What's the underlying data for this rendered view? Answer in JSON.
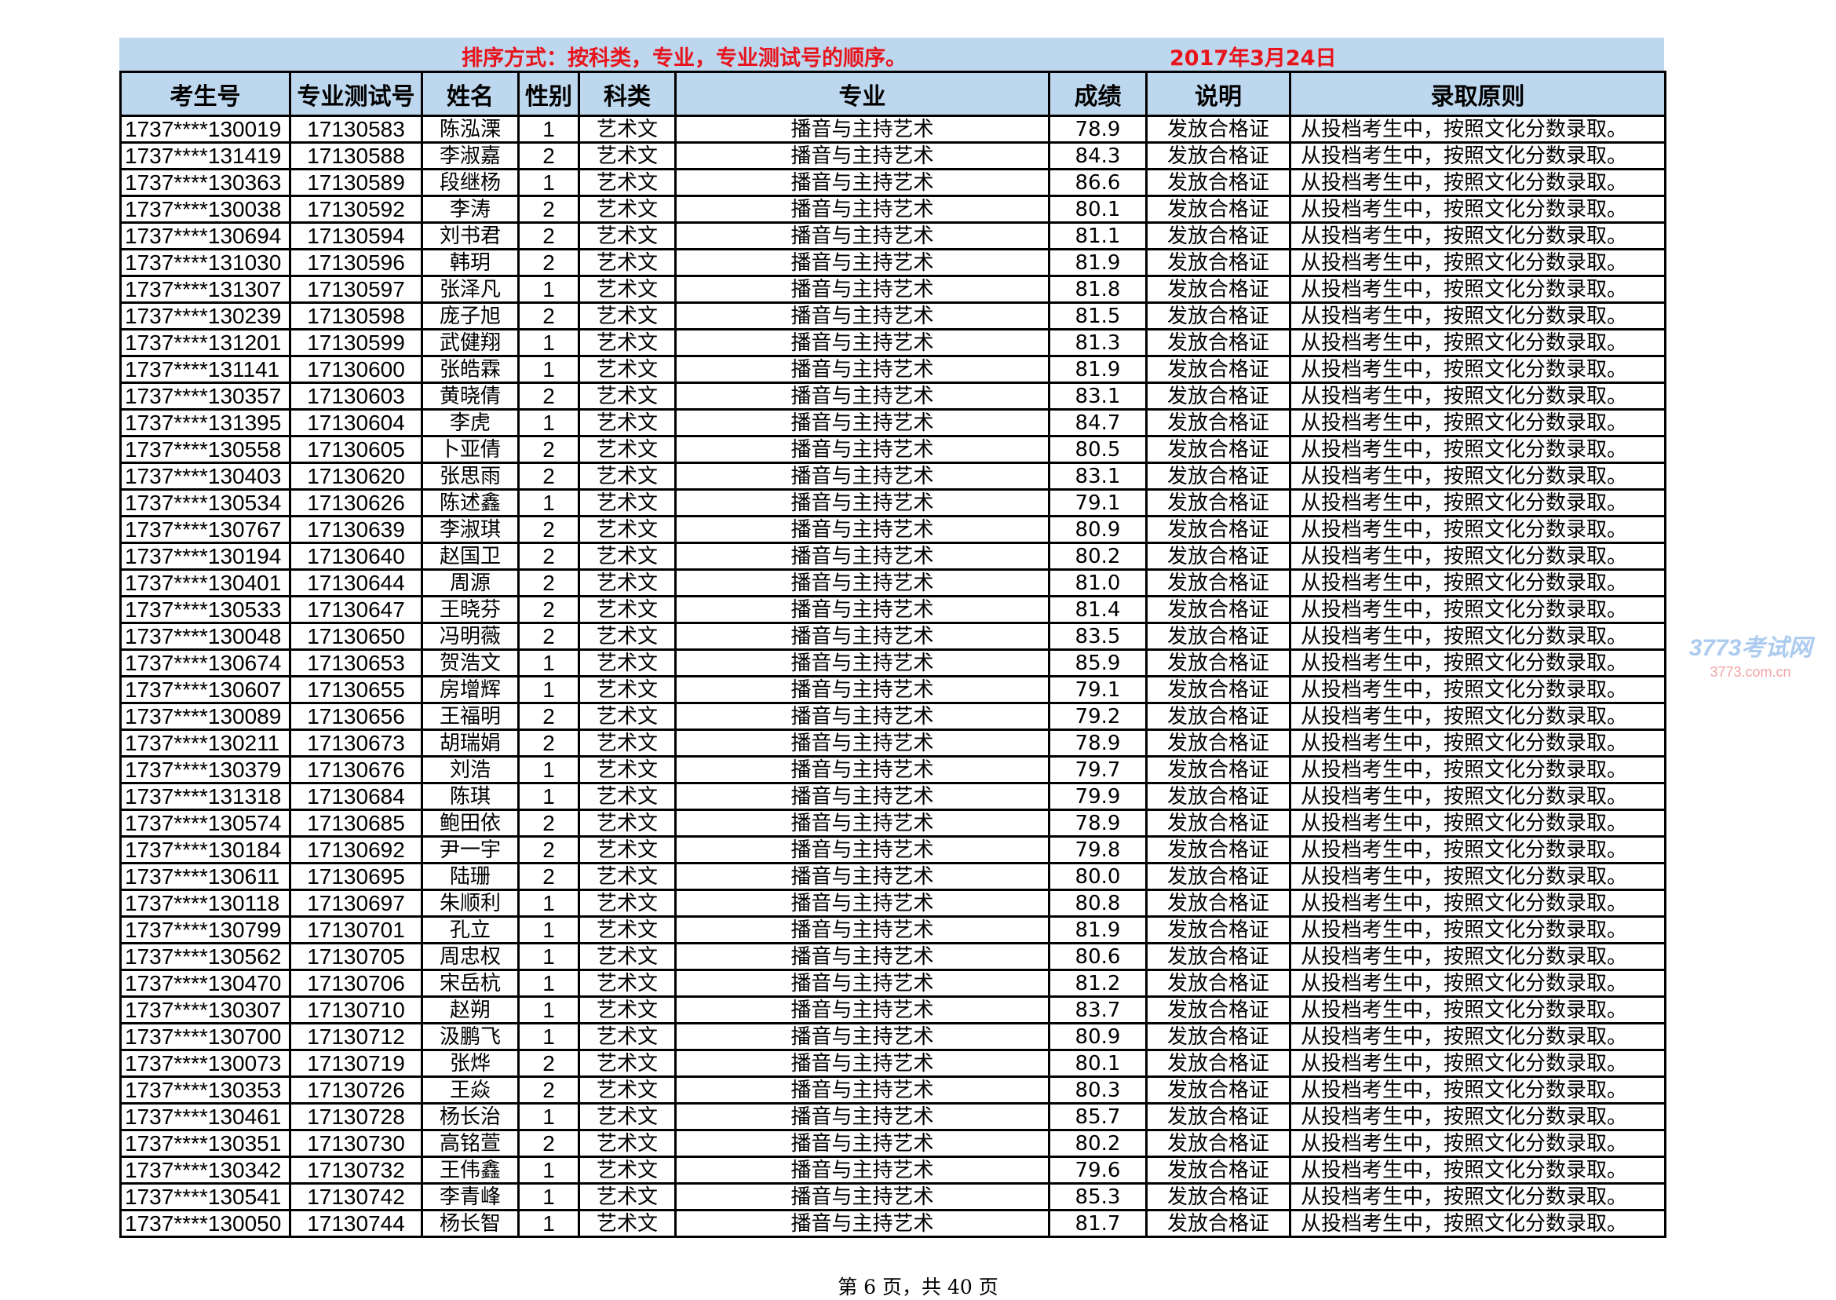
{
  "header": {
    "sort_note": "排序方式：按科类，专业，专业测试号的顺序。",
    "date": "2017年3月24日",
    "band_color": "#bdd7ee",
    "note_color": "#e8141c"
  },
  "table": {
    "columns": [
      "考生号",
      "专业测试号",
      "姓名",
      "性别",
      "科类",
      "专业",
      "成绩",
      "说明",
      "录取原则"
    ],
    "rows": [
      [
        "1737****130019",
        "17130583",
        "陈泓溧",
        "1",
        "艺术文",
        "播音与主持艺术",
        "78.9",
        "发放合格证",
        "从投档考生中，按照文化分数录取。"
      ],
      [
        "1737****131419",
        "17130588",
        "李淑嘉",
        "2",
        "艺术文",
        "播音与主持艺术",
        "84.3",
        "发放合格证",
        "从投档考生中，按照文化分数录取。"
      ],
      [
        "1737****130363",
        "17130589",
        "段继杨",
        "1",
        "艺术文",
        "播音与主持艺术",
        "86.6",
        "发放合格证",
        "从投档考生中，按照文化分数录取。"
      ],
      [
        "1737****130038",
        "17130592",
        "李涛",
        "2",
        "艺术文",
        "播音与主持艺术",
        "80.1",
        "发放合格证",
        "从投档考生中，按照文化分数录取。"
      ],
      [
        "1737****130694",
        "17130594",
        "刘书君",
        "2",
        "艺术文",
        "播音与主持艺术",
        "81.1",
        "发放合格证",
        "从投档考生中，按照文化分数录取。"
      ],
      [
        "1737****131030",
        "17130596",
        "韩玥",
        "2",
        "艺术文",
        "播音与主持艺术",
        "81.9",
        "发放合格证",
        "从投档考生中，按照文化分数录取。"
      ],
      [
        "1737****131307",
        "17130597",
        "张泽凡",
        "1",
        "艺术文",
        "播音与主持艺术",
        "81.8",
        "发放合格证",
        "从投档考生中，按照文化分数录取。"
      ],
      [
        "1737****130239",
        "17130598",
        "庞子旭",
        "2",
        "艺术文",
        "播音与主持艺术",
        "81.5",
        "发放合格证",
        "从投档考生中，按照文化分数录取。"
      ],
      [
        "1737****131201",
        "17130599",
        "武健翔",
        "1",
        "艺术文",
        "播音与主持艺术",
        "81.3",
        "发放合格证",
        "从投档考生中，按照文化分数录取。"
      ],
      [
        "1737****131141",
        "17130600",
        "张皓霖",
        "1",
        "艺术文",
        "播音与主持艺术",
        "81.9",
        "发放合格证",
        "从投档考生中，按照文化分数录取。"
      ],
      [
        "1737****130357",
        "17130603",
        "黄晓倩",
        "2",
        "艺术文",
        "播音与主持艺术",
        "83.1",
        "发放合格证",
        "从投档考生中，按照文化分数录取。"
      ],
      [
        "1737****131395",
        "17130604",
        "李虎",
        "1",
        "艺术文",
        "播音与主持艺术",
        "84.7",
        "发放合格证",
        "从投档考生中，按照文化分数录取。"
      ],
      [
        "1737****130558",
        "17130605",
        "卜亚倩",
        "2",
        "艺术文",
        "播音与主持艺术",
        "80.5",
        "发放合格证",
        "从投档考生中，按照文化分数录取。"
      ],
      [
        "1737****130403",
        "17130620",
        "张思雨",
        "2",
        "艺术文",
        "播音与主持艺术",
        "83.1",
        "发放合格证",
        "从投档考生中，按照文化分数录取。"
      ],
      [
        "1737****130534",
        "17130626",
        "陈述鑫",
        "1",
        "艺术文",
        "播音与主持艺术",
        "79.1",
        "发放合格证",
        "从投档考生中，按照文化分数录取。"
      ],
      [
        "1737****130767",
        "17130639",
        "李淑琪",
        "2",
        "艺术文",
        "播音与主持艺术",
        "80.9",
        "发放合格证",
        "从投档考生中，按照文化分数录取。"
      ],
      [
        "1737****130194",
        "17130640",
        "赵国卫",
        "2",
        "艺术文",
        "播音与主持艺术",
        "80.2",
        "发放合格证",
        "从投档考生中，按照文化分数录取。"
      ],
      [
        "1737****130401",
        "17130644",
        "周源",
        "2",
        "艺术文",
        "播音与主持艺术",
        "81.0",
        "发放合格证",
        "从投档考生中，按照文化分数录取。"
      ],
      [
        "1737****130533",
        "17130647",
        "王晓芬",
        "2",
        "艺术文",
        "播音与主持艺术",
        "81.4",
        "发放合格证",
        "从投档考生中，按照文化分数录取。"
      ],
      [
        "1737****130048",
        "17130650",
        "冯明薇",
        "2",
        "艺术文",
        "播音与主持艺术",
        "83.5",
        "发放合格证",
        "从投档考生中，按照文化分数录取。"
      ],
      [
        "1737****130674",
        "17130653",
        "贺浩文",
        "1",
        "艺术文",
        "播音与主持艺术",
        "85.9",
        "发放合格证",
        "从投档考生中，按照文化分数录取。"
      ],
      [
        "1737****130607",
        "17130655",
        "房增辉",
        "1",
        "艺术文",
        "播音与主持艺术",
        "79.1",
        "发放合格证",
        "从投档考生中，按照文化分数录取。"
      ],
      [
        "1737****130089",
        "17130656",
        "王福明",
        "2",
        "艺术文",
        "播音与主持艺术",
        "79.2",
        "发放合格证",
        "从投档考生中，按照文化分数录取。"
      ],
      [
        "1737****130211",
        "17130673",
        "胡瑞娟",
        "2",
        "艺术文",
        "播音与主持艺术",
        "78.9",
        "发放合格证",
        "从投档考生中，按照文化分数录取。"
      ],
      [
        "1737****130379",
        "17130676",
        "刘浩",
        "1",
        "艺术文",
        "播音与主持艺术",
        "79.7",
        "发放合格证",
        "从投档考生中，按照文化分数录取。"
      ],
      [
        "1737****131318",
        "17130684",
        "陈琪",
        "1",
        "艺术文",
        "播音与主持艺术",
        "79.9",
        "发放合格证",
        "从投档考生中，按照文化分数录取。"
      ],
      [
        "1737****130574",
        "17130685",
        "鲍田依",
        "2",
        "艺术文",
        "播音与主持艺术",
        "78.9",
        "发放合格证",
        "从投档考生中，按照文化分数录取。"
      ],
      [
        "1737****130184",
        "17130692",
        "尹一宇",
        "2",
        "艺术文",
        "播音与主持艺术",
        "79.8",
        "发放合格证",
        "从投档考生中，按照文化分数录取。"
      ],
      [
        "1737****130611",
        "17130695",
        "陆珊",
        "2",
        "艺术文",
        "播音与主持艺术",
        "80.0",
        "发放合格证",
        "从投档考生中，按照文化分数录取。"
      ],
      [
        "1737****130118",
        "17130697",
        "朱顺利",
        "1",
        "艺术文",
        "播音与主持艺术",
        "80.8",
        "发放合格证",
        "从投档考生中，按照文化分数录取。"
      ],
      [
        "1737****130799",
        "17130701",
        "孔立",
        "1",
        "艺术文",
        "播音与主持艺术",
        "81.9",
        "发放合格证",
        "从投档考生中，按照文化分数录取。"
      ],
      [
        "1737****130562",
        "17130705",
        "周忠权",
        "1",
        "艺术文",
        "播音与主持艺术",
        "80.6",
        "发放合格证",
        "从投档考生中，按照文化分数录取。"
      ],
      [
        "1737****130470",
        "17130706",
        "宋岳杭",
        "1",
        "艺术文",
        "播音与主持艺术",
        "81.2",
        "发放合格证",
        "从投档考生中，按照文化分数录取。"
      ],
      [
        "1737****130307",
        "17130710",
        "赵朔",
        "1",
        "艺术文",
        "播音与主持艺术",
        "83.7",
        "发放合格证",
        "从投档考生中，按照文化分数录取。"
      ],
      [
        "1737****130700",
        "17130712",
        "汲鹏飞",
        "1",
        "艺术文",
        "播音与主持艺术",
        "80.9",
        "发放合格证",
        "从投档考生中，按照文化分数录取。"
      ],
      [
        "1737****130073",
        "17130719",
        "张烨",
        "2",
        "艺术文",
        "播音与主持艺术",
        "80.1",
        "发放合格证",
        "从投档考生中，按照文化分数录取。"
      ],
      [
        "1737****130353",
        "17130726",
        "王焱",
        "2",
        "艺术文",
        "播音与主持艺术",
        "80.3",
        "发放合格证",
        "从投档考生中，按照文化分数录取。"
      ],
      [
        "1737****130461",
        "17130728",
        "杨长治",
        "1",
        "艺术文",
        "播音与主持艺术",
        "85.7",
        "发放合格证",
        "从投档考生中，按照文化分数录取。"
      ],
      [
        "1737****130351",
        "17130730",
        "高铭萱",
        "2",
        "艺术文",
        "播音与主持艺术",
        "80.2",
        "发放合格证",
        "从投档考生中，按照文化分数录取。"
      ],
      [
        "1737****130342",
        "17130732",
        "王伟鑫",
        "1",
        "艺术文",
        "播音与主持艺术",
        "79.6",
        "发放合格证",
        "从投档考生中，按照文化分数录取。"
      ],
      [
        "1737****130541",
        "17130742",
        "李青峰",
        "1",
        "艺术文",
        "播音与主持艺术",
        "85.3",
        "发放合格证",
        "从投档考生中，按照文化分数录取。"
      ],
      [
        "1737****130050",
        "17130744",
        "杨长智",
        "1",
        "艺术文",
        "播音与主持艺术",
        "81.7",
        "发放合格证",
        "从投档考生中，按照文化分数录取。"
      ]
    ]
  },
  "watermark": {
    "main": "3773考试网",
    "sub": "3773.com.cn"
  },
  "footer": {
    "page_label": "第 6 页，共 40 页"
  }
}
